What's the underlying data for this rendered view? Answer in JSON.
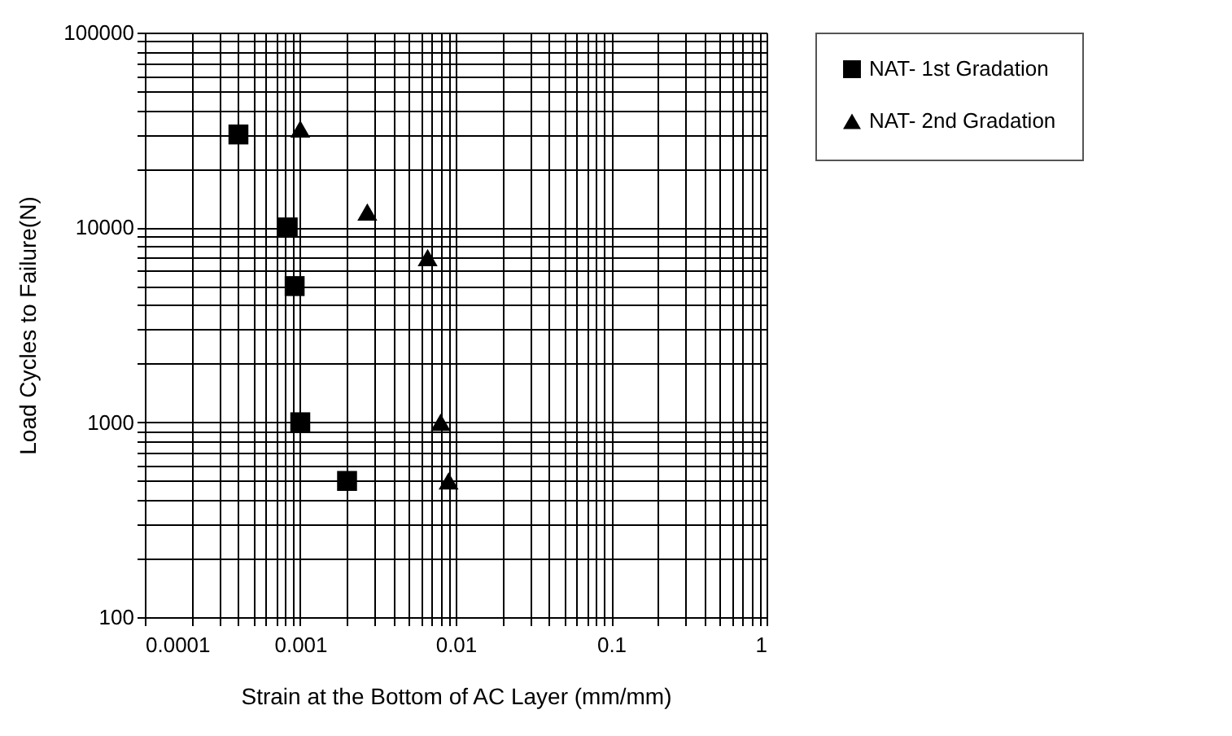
{
  "chart_data": {
    "type": "scatter",
    "xlabel": "Strain at the Bottom of AC Layer (mm/mm)",
    "ylabel": "Load Cycles to Failure(N)",
    "log": "xy",
    "grid": true,
    "legend": "right",
    "xlim": [
      0.0001,
      1
    ],
    "ylim": [
      100,
      100000
    ],
    "xticks": [
      0.0001,
      {
        "value": 0.0002,
        "label": null
      },
      {
        "value": 0.0003,
        "label": null
      },
      {
        "value": 0.0004,
        "label": null
      },
      {
        "value": 0.0005,
        "label": null
      },
      {
        "value": 0.0006,
        "label": null
      },
      {
        "value": 0.0007,
        "label": null
      },
      {
        "value": 0.0008,
        "label": null
      },
      {
        "value": 0.0009,
        "label": null
      },
      0.001,
      {
        "value": 0.002,
        "label": null
      },
      {
        "value": 0.003,
        "label": null
      },
      {
        "value": 0.004,
        "label": null
      },
      {
        "value": 0.005,
        "label": null
      },
      {
        "value": 0.006,
        "label": null
      },
      {
        "value": 0.007,
        "label": null
      },
      {
        "value": 0.008,
        "label": null
      },
      {
        "value": 0.009,
        "label": null
      },
      0.01,
      {
        "value": 0.02,
        "label": null
      },
      {
        "value": 0.03,
        "label": null
      },
      {
        "value": 0.04,
        "label": null
      },
      {
        "value": 0.05,
        "label": null
      },
      {
        "value": 0.06,
        "label": null
      },
      {
        "value": 0.07,
        "label": null
      },
      {
        "value": 0.08,
        "label": null
      },
      {
        "value": 0.09,
        "label": null
      },
      0.1,
      {
        "value": 0.2,
        "label": null
      },
      {
        "value": 0.3,
        "label": null
      },
      {
        "value": 0.4,
        "label": null
      },
      {
        "value": 0.5,
        "label": null
      },
      {
        "value": 0.6,
        "label": null
      },
      {
        "value": 0.7,
        "label": null
      },
      {
        "value": 0.8,
        "label": null
      },
      {
        "value": 0.9,
        "label": null
      },
      1
    ],
    "yticks": [
      100,
      {
        "value": 200,
        "label": null
      },
      {
        "value": 300,
        "label": null
      },
      {
        "value": 400,
        "label": null
      },
      {
        "value": 500,
        "label": null
      },
      {
        "value": 600,
        "label": null
      },
      {
        "value": 700,
        "label": null
      },
      {
        "value": 800,
        "label": null
      },
      {
        "value": 900,
        "label": null
      },
      1000,
      {
        "value": 2000,
        "label": null
      },
      {
        "value": 3000,
        "label": null
      },
      {
        "value": 4000,
        "label": null
      },
      {
        "value": 5000,
        "label": null
      },
      {
        "value": 6000,
        "label": null
      },
      {
        "value": 7000,
        "label": null
      },
      {
        "value": 8000,
        "label": null
      },
      {
        "value": 9000,
        "label": null
      },
      10000,
      {
        "value": 20000,
        "label": null
      },
      {
        "value": 30000,
        "label": null
      },
      {
        "value": 40000,
        "label": null
      },
      {
        "value": 50000,
        "label": null
      },
      {
        "value": 60000,
        "label": null
      },
      {
        "value": 70000,
        "label": null
      },
      {
        "value": 80000,
        "label": null
      },
      {
        "value": 90000,
        "label": null
      },
      100000
    ],
    "series": [
      {
        "name": "NAT- 1st Gradation",
        "color": "#000000",
        "marker": "square",
        "x": [
          0.0004,
          0.00083,
          0.00092,
          0.001,
          0.002
        ],
        "values": [
          30000,
          10000,
          5000,
          1000,
          500
        ]
      },
      {
        "name": "NAT- 2nd Gradation",
        "color": "#000000",
        "marker": "triangle",
        "x": [
          0.001,
          0.0027,
          0.0066,
          0.008,
          0.009
        ],
        "values": [
          32000,
          12000,
          7000,
          1000,
          500
        ]
      }
    ]
  }
}
